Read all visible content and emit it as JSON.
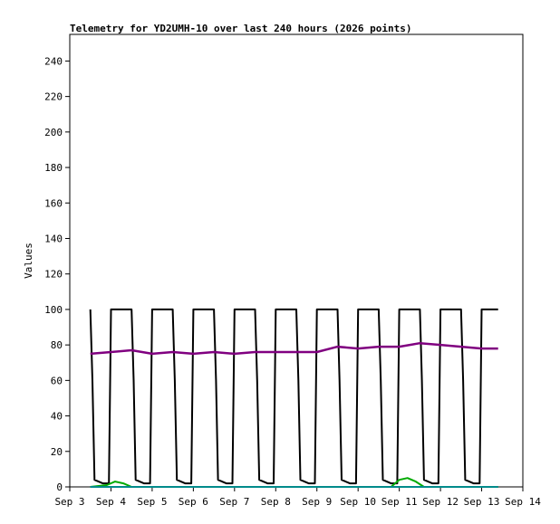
{
  "chart_data": {
    "type": "line",
    "title": "Telemetry for YD2UMH-10 over last 240 hours (2026 points)",
    "xlabel": "",
    "ylabel": "Values",
    "ylim": [
      0,
      255
    ],
    "yticks": [
      0,
      20,
      40,
      60,
      80,
      100,
      120,
      140,
      160,
      180,
      200,
      220,
      240
    ],
    "xlim": [
      "Sep 3",
      "Sep 14"
    ],
    "xticks": [
      "Sep 3",
      "Sep 4",
      "Sep 5",
      "Sep 6",
      "Sep 7",
      "Sep 8",
      "Sep 9",
      "Sep 10",
      "Sep 11",
      "Sep 12",
      "Sep 13",
      "Sep 14"
    ],
    "grid": false,
    "legend": "none",
    "series": [
      {
        "color": "#000000",
        "x": [
          "Sep 3.5",
          "Sep 3.55",
          "Sep 3.6",
          "Sep 3.8",
          "Sep 3.95",
          "Sep 4.0",
          "Sep 4.5",
          "Sep 4.55",
          "Sep 4.6",
          "Sep 4.8",
          "Sep 4.95",
          "Sep 5.0",
          "Sep 5.5",
          "Sep 5.55",
          "Sep 5.6",
          "Sep 5.8",
          "Sep 5.95",
          "Sep 6.0",
          "Sep 6.5",
          "Sep 6.55",
          "Sep 6.6",
          "Sep 6.8",
          "Sep 6.95",
          "Sep 7.0",
          "Sep 7.5",
          "Sep 7.55",
          "Sep 7.6",
          "Sep 7.8",
          "Sep 7.95",
          "Sep 8.0",
          "Sep 8.5",
          "Sep 8.55",
          "Sep 8.6",
          "Sep 8.8",
          "Sep 8.95",
          "Sep 9.0",
          "Sep 9.5",
          "Sep 9.55",
          "Sep 9.6",
          "Sep 9.8",
          "Sep 9.95",
          "Sep 10.0",
          "Sep 10.5",
          "Sep 10.55",
          "Sep 10.6",
          "Sep 10.8",
          "Sep 10.95",
          "Sep 11.0",
          "Sep 11.5",
          "Sep 11.55",
          "Sep 11.6",
          "Sep 11.8",
          "Sep 11.95",
          "Sep 12.0",
          "Sep 12.5",
          "Sep 12.55",
          "Sep 12.6",
          "Sep 12.8",
          "Sep 12.95",
          "Sep 13.0",
          "Sep 13.4"
        ],
        "y": [
          100,
          60,
          4,
          2,
          2,
          100,
          100,
          60,
          4,
          2,
          2,
          100,
          100,
          60,
          4,
          2,
          2,
          100,
          100,
          60,
          4,
          2,
          2,
          100,
          100,
          60,
          4,
          2,
          2,
          100,
          100,
          60,
          4,
          2,
          2,
          100,
          100,
          60,
          4,
          2,
          2,
          100,
          100,
          60,
          4,
          2,
          2,
          100,
          100,
          60,
          4,
          2,
          2,
          100,
          100,
          60,
          4,
          2,
          2,
          100,
          100
        ]
      },
      {
        "color": "#800080",
        "x": [
          "Sep 3.5",
          "Sep 4",
          "Sep 4.5",
          "Sep 5",
          "Sep 5.5",
          "Sep 6",
          "Sep 6.5",
          "Sep 7",
          "Sep 7.5",
          "Sep 8",
          "Sep 8.5",
          "Sep 9",
          "Sep 9.5",
          "Sep 10",
          "Sep 10.5",
          "Sep 11",
          "Sep 11.5",
          "Sep 12",
          "Sep 12.5",
          "Sep 13",
          "Sep 13.4"
        ],
        "y": [
          75,
          76,
          77,
          75,
          76,
          75,
          76,
          75,
          76,
          76,
          76,
          76,
          79,
          78,
          79,
          79,
          81,
          80,
          79,
          78,
          78
        ]
      },
      {
        "color": "#00aa00",
        "x": [
          "Sep 3.5",
          "Sep 3.9",
          "Sep 4.1",
          "Sep 4.3",
          "Sep 4.5",
          "Sep 5.5",
          "Sep 10.8",
          "Sep 11.0",
          "Sep 11.2",
          "Sep 11.4",
          "Sep 11.6",
          "Sep 12.0",
          "Sep 13.4"
        ],
        "y": [
          0,
          1,
          3,
          2,
          0,
          0,
          0,
          4,
          5,
          3,
          0,
          0,
          0
        ]
      },
      {
        "color": "#008b8b",
        "x": [
          "Sep 3.5",
          "Sep 13.4"
        ],
        "y": [
          0,
          0
        ]
      }
    ]
  }
}
